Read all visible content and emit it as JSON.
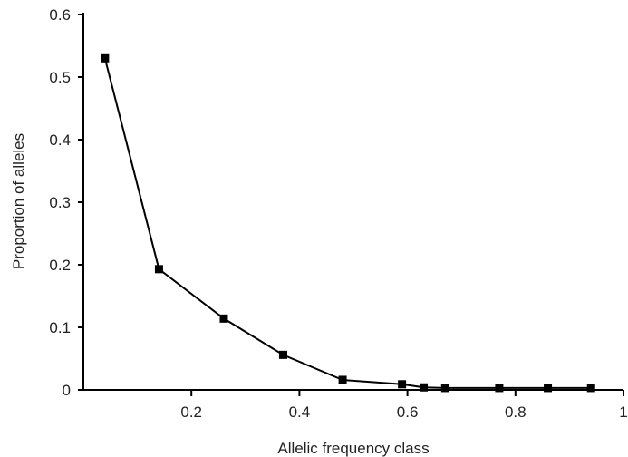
{
  "chart_data": {
    "type": "line",
    "xlabel": "Allelic frequency class",
    "ylabel": "Proportion of alleles",
    "xlim": [
      0,
      1
    ],
    "ylim": [
      0,
      0.6
    ],
    "x_ticks": [
      0.2,
      0.4,
      0.6,
      0.8,
      1
    ],
    "x_tick_labels": [
      "0.2",
      "0.4",
      "0.6",
      "0.8",
      "1"
    ],
    "y_ticks": [
      0,
      0.1,
      0.2,
      0.3,
      0.4,
      0.5,
      0.6
    ],
    "y_tick_labels": [
      "0",
      "0.1",
      "0.2",
      "0.3",
      "0.4",
      "0.5",
      "0.6"
    ],
    "grid": false,
    "legend": "none",
    "series": [
      {
        "color": "#000000",
        "marker": "square",
        "x": [
          0.04,
          0.14,
          0.26,
          0.37,
          0.48,
          0.59,
          0.63,
          0.67,
          0.77,
          0.86,
          0.94
        ],
        "y": [
          0.53,
          0.193,
          0.114,
          0.056,
          0.016,
          0.009,
          0.004,
          0.003,
          0.003,
          0.003,
          0.003
        ]
      }
    ]
  }
}
